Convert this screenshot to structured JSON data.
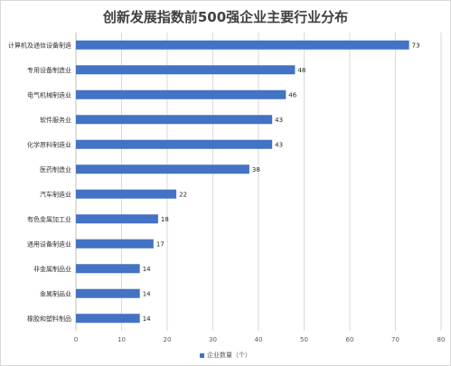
{
  "chart_data": {
    "type": "bar",
    "orientation": "horizontal",
    "title": "创新发展指数前500强企业主要行业分布",
    "categories": [
      "计算机及通信设备制造",
      "专用设备制造业",
      "电气机械制造业",
      "软件服务业",
      "化学原料制造业",
      "医药制造业",
      "汽车制造业",
      "有色金属加工业",
      "通用设备制造业",
      "非金属制品业",
      "金属制品业",
      "橡胶和塑料制品"
    ],
    "series": [
      {
        "name": "企业数量（个）",
        "values": [
          73,
          48,
          46,
          43,
          43,
          38,
          22,
          18,
          17,
          14,
          14,
          14
        ]
      }
    ],
    "xlim": [
      0,
      80
    ],
    "xticks": [
      0,
      10,
      20,
      30,
      40,
      50,
      60,
      70,
      80
    ],
    "grid": true,
    "legend_position": "bottom",
    "colors": {
      "bar": "#4472c4",
      "grid": "#d9d9d9"
    }
  }
}
